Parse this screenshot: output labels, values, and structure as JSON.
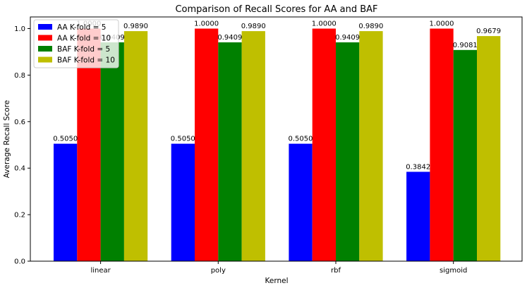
{
  "chart_data": {
    "type": "bar",
    "title": "Comparison of Recall Scores for AA and BAF",
    "xlabel": "Kernel",
    "ylabel": "Average Recall Score",
    "categories": [
      "linear",
      "poly",
      "rbf",
      "sigmoid"
    ],
    "ylim": [
      0,
      1.05
    ],
    "yticks": [
      0.0,
      0.2,
      0.4,
      0.6,
      0.8,
      1.0
    ],
    "ytick_labels": [
      "0.0",
      "0.2",
      "0.4",
      "0.6",
      "0.8",
      "1.0"
    ],
    "grid": false,
    "legend_position": "top-left",
    "series": [
      {
        "name": "AA K-fold = 5",
        "color": "#0000ff",
        "values": [
          0.505,
          0.505,
          0.505,
          0.3842
        ],
        "labels": [
          "0.5050",
          "0.5050",
          "0.5050",
          "0.3842"
        ]
      },
      {
        "name": "AA K-fold = 10",
        "color": "#ff0000",
        "values": [
          1.0,
          1.0,
          1.0,
          1.0
        ],
        "labels": [
          "1.0000",
          "1.0000",
          "1.0000",
          "1.0000"
        ]
      },
      {
        "name": "BAF K-fold = 5",
        "color": "#008000",
        "values": [
          0.9409,
          0.9409,
          0.9409,
          0.9081
        ],
        "labels": [
          "0.9409",
          "0.9409",
          "0.9409",
          "0.9081"
        ]
      },
      {
        "name": "BAF K-fold = 10",
        "color": "#bfbf00",
        "values": [
          0.989,
          0.989,
          0.989,
          0.9679
        ],
        "labels": [
          "0.9890",
          "0.9890",
          "0.9890",
          "0.9679"
        ]
      }
    ]
  }
}
